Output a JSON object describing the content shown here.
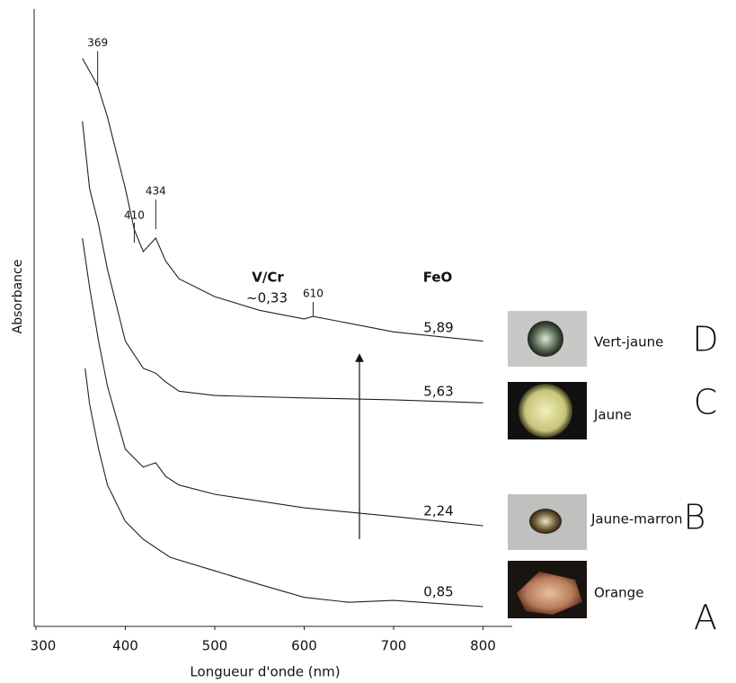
{
  "chart_data": {
    "type": "line",
    "xlabel": "Longueur d'onde (nm)",
    "ylabel": "Absorbance",
    "xlim": [
      300,
      800
    ],
    "ylim": [
      0,
      10
    ],
    "xticks": [
      300,
      400,
      500,
      600,
      700,
      800
    ],
    "peaks": [
      369,
      410,
      434,
      610
    ],
    "vcr": {
      "title": "V/Cr",
      "label": "~0,33"
    },
    "feo": {
      "title": "FeO",
      "labels": [
        "5,89",
        "5,63",
        "2,24",
        "0,85"
      ]
    },
    "series": [
      {
        "name": "D",
        "sample": "Vert-jaune",
        "color": "#222222",
        "x": [
          352,
          369,
          380,
          400,
          410,
          420,
          434,
          445,
          460,
          500,
          550,
          600,
          610,
          650,
          700,
          800
        ],
        "values": [
          9.2,
          8.76,
          8.25,
          7.09,
          6.43,
          6.07,
          6.29,
          5.92,
          5.63,
          5.34,
          5.12,
          4.98,
          5.02,
          4.91,
          4.77,
          4.62
        ]
      },
      {
        "name": "C",
        "sample": "Jaune",
        "color": "#222222",
        "x": [
          352,
          360,
          370,
          380,
          400,
          420,
          434,
          445,
          460,
          500,
          600,
          700,
          800
        ],
        "values": [
          8.18,
          7.09,
          6.51,
          5.78,
          4.62,
          4.18,
          4.1,
          3.96,
          3.81,
          3.74,
          3.7,
          3.67,
          3.62
        ]
      },
      {
        "name": "B",
        "sample": "Jaune-marron",
        "color": "#222222",
        "x": [
          352,
          360,
          370,
          380,
          400,
          420,
          434,
          445,
          460,
          500,
          600,
          700,
          800
        ],
        "values": [
          6.29,
          5.49,
          4.62,
          3.89,
          2.87,
          2.58,
          2.65,
          2.43,
          2.29,
          2.14,
          1.92,
          1.78,
          1.63
        ]
      },
      {
        "name": "A",
        "sample": "Orange",
        "color": "#222222",
        "x": [
          355,
          360,
          370,
          380,
          400,
          420,
          450,
          500,
          550,
          600,
          650,
          700,
          800
        ],
        "values": [
          4.18,
          3.6,
          2.87,
          2.29,
          1.7,
          1.41,
          1.12,
          0.9,
          0.68,
          0.47,
          0.39,
          0.42,
          0.32
        ]
      }
    ]
  }
}
